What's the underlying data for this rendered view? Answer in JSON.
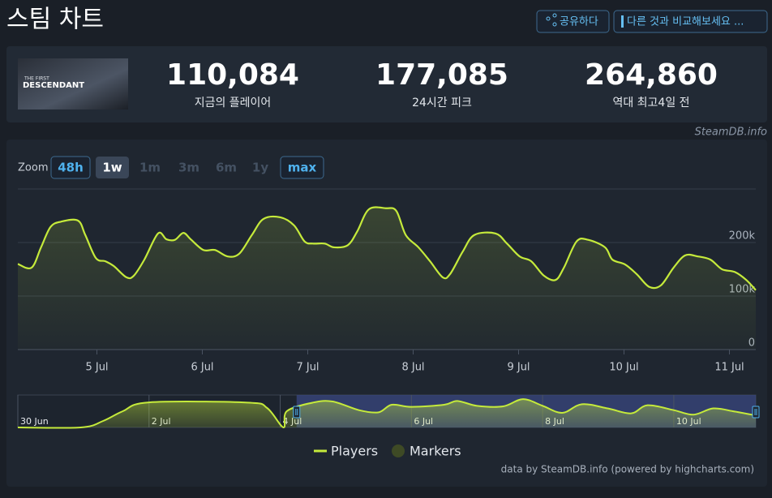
{
  "header": {
    "title": "스팀 차트",
    "share": "공유하다",
    "compare": "다른 것과 비교해보세요 ..."
  },
  "game": {
    "logo_top": "THE FIRST",
    "logo_main": "DESCENDANT"
  },
  "stats": [
    {
      "value": "110,084",
      "label": "지금의 플레이어"
    },
    {
      "value": "177,085",
      "label": "24시간 피크"
    },
    {
      "value": "264,860",
      "label": "역대 최고",
      "note": "4일 전"
    }
  ],
  "source": "SteamDB.info",
  "zoom": {
    "label": "Zoom",
    "options": [
      "48h",
      "1w",
      "1m",
      "3m",
      "6m",
      "1y",
      "max"
    ],
    "selected": 1,
    "disabled": [
      2,
      3,
      4,
      5
    ]
  },
  "credits": "data by SteamDB.info (powered by highcharts.com)",
  "chart_data": [
    {
      "type": "line",
      "x": [
        4.25,
        4.38,
        4.47,
        4.56,
        4.66,
        4.82,
        4.89,
        4.99,
        5.08,
        5.16,
        5.28,
        5.35,
        5.45,
        5.58,
        5.66,
        5.74,
        5.82,
        5.89,
        6.01,
        6.12,
        6.24,
        6.35,
        6.47,
        6.58,
        6.74,
        6.87,
        6.97,
        7.05,
        7.16,
        7.25,
        7.38,
        7.47,
        7.58,
        7.74,
        7.84,
        7.93,
        8.05,
        8.16,
        8.28,
        8.35,
        8.47,
        8.58,
        8.78,
        8.89,
        9.01,
        9.12,
        9.24,
        9.35,
        9.43,
        9.55,
        9.66,
        9.82,
        9.89,
        10.01,
        10.12,
        10.24,
        10.35,
        10.47,
        10.58,
        10.7,
        10.82,
        10.93,
        11.05,
        11.16,
        11.25
      ],
      "series": [
        {
          "name": "Players",
          "color": "#c5ea3b",
          "values": [
            160000,
            153000,
            191000,
            229000,
            239000,
            241000,
            214000,
            171000,
            165000,
            156000,
            135000,
            138000,
            168000,
            217000,
            206000,
            205000,
            218000,
            206000,
            186000,
            186000,
            174000,
            179000,
            214000,
            244000,
            247000,
            232000,
            202000,
            198000,
            198000,
            191000,
            195000,
            221000,
            262000,
            264000,
            259000,
            214000,
            191000,
            165000,
            135000,
            141000,
            183000,
            214000,
            217000,
            198000,
            174000,
            165000,
            138000,
            130000,
            153000,
            202000,
            205000,
            191000,
            168000,
            159000,
            141000,
            117000,
            120000,
            153000,
            176000,
            174000,
            168000,
            150000,
            145000,
            130000,
            111000
          ]
        }
      ],
      "markers": {
        "name": "Markers",
        "color": "#3e4a25"
      },
      "xlim": [
        4.25,
        11.25
      ],
      "xticks": [
        {
          "value": 5,
          "label": "5 Jul"
        },
        {
          "value": 6,
          "label": "6 Jul"
        },
        {
          "value": 7,
          "label": "7 Jul"
        },
        {
          "value": 8,
          "label": "8 Jul"
        },
        {
          "value": 9,
          "label": "9 Jul"
        },
        {
          "value": 10,
          "label": "10 Jul"
        },
        {
          "value": 11,
          "label": "11 Jul"
        }
      ],
      "ylim": [
        0,
        300000
      ],
      "yticks": [
        0,
        {
          "value": 100000,
          "label": "100k"
        },
        {
          "value": 200000,
          "label": "200k"
        }
      ],
      "grid": true
    },
    {
      "type": "line",
      "x": [
        0,
        0.96,
        1.3,
        1.6,
        2.0,
        3.5,
        3.8,
        4.05,
        4.1,
        4.5,
        4.8,
        5.2,
        5.5,
        5.7,
        6.0,
        6.5,
        6.7,
        7.0,
        7.4,
        7.7,
        8.0,
        8.3,
        8.6,
        9.0,
        9.35,
        9.6,
        10.0,
        10.3,
        10.6,
        10.9,
        11.25
      ],
      "series": [
        {
          "color": "#c5ea3b",
          "values": [
            0,
            0,
            60000,
            150000,
            232000,
            230000,
            180000,
            0,
            150000,
            230000,
            240000,
            160000,
            140000,
            210000,
            190000,
            210000,
            245000,
            200000,
            195000,
            262000,
            200000,
            135000,
            215000,
            175000,
            130000,
            205000,
            160000,
            118000,
            176000,
            150000,
            111000
          ]
        }
      ],
      "xlim": [
        0,
        11.25
      ],
      "xticks": [
        {
          "value": 0,
          "label": "30 Jun"
        },
        {
          "value": 2,
          "label": "2 Jul"
        },
        {
          "value": 4,
          "label": "4 Jul"
        },
        {
          "value": 6,
          "label": "6 Jul"
        },
        {
          "value": 8,
          "label": "8 Jul"
        },
        {
          "value": 10,
          "label": "10 Jul"
        }
      ],
      "ylim": [
        0,
        300000
      ],
      "grid": false
    }
  ]
}
